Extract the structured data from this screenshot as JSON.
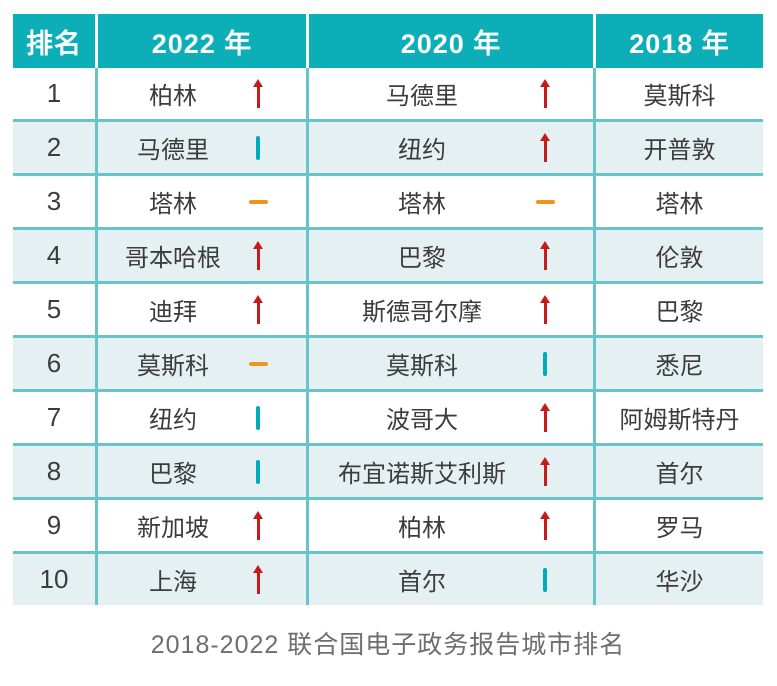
{
  "chart_data": {
    "type": "table",
    "title": "2018-2022 联合国电子政务报告城市排名",
    "columns": [
      "排名",
      "2022 年",
      "2020 年",
      "2018 年"
    ],
    "rows": [
      {
        "rank": "1",
        "y2022": {
          "city": "柏林",
          "trend": "up"
        },
        "y2020": {
          "city": "马德里",
          "trend": "up"
        },
        "y2018": {
          "city": "莫斯科"
        }
      },
      {
        "rank": "2",
        "y2022": {
          "city": "马德里",
          "trend": "down"
        },
        "y2020": {
          "city": "纽约",
          "trend": "up"
        },
        "y2018": {
          "city": "开普敦"
        }
      },
      {
        "rank": "3",
        "y2022": {
          "city": "塔林",
          "trend": "same"
        },
        "y2020": {
          "city": "塔林",
          "trend": "same"
        },
        "y2018": {
          "city": "塔林"
        }
      },
      {
        "rank": "4",
        "y2022": {
          "city": "哥本哈根",
          "trend": "up"
        },
        "y2020": {
          "city": "巴黎",
          "trend": "up"
        },
        "y2018": {
          "city": "伦敦"
        }
      },
      {
        "rank": "5",
        "y2022": {
          "city": "迪拜",
          "trend": "up"
        },
        "y2020": {
          "city": "斯德哥尔摩",
          "trend": "up"
        },
        "y2018": {
          "city": "巴黎"
        }
      },
      {
        "rank": "6",
        "y2022": {
          "city": "莫斯科",
          "trend": "same"
        },
        "y2020": {
          "city": "莫斯科",
          "trend": "down"
        },
        "y2018": {
          "city": "悉尼"
        }
      },
      {
        "rank": "7",
        "y2022": {
          "city": "纽约",
          "trend": "down"
        },
        "y2020": {
          "city": "波哥大",
          "trend": "up"
        },
        "y2018": {
          "city": "阿姆斯特丹"
        }
      },
      {
        "rank": "8",
        "y2022": {
          "city": "巴黎",
          "trend": "down"
        },
        "y2020": {
          "city": "布宜诺斯艾利斯",
          "trend": "up"
        },
        "y2018": {
          "city": "首尔"
        }
      },
      {
        "rank": "9",
        "y2022": {
          "city": "新加坡",
          "trend": "up"
        },
        "y2020": {
          "city": "柏林",
          "trend": "up"
        },
        "y2018": {
          "city": "罗马"
        }
      },
      {
        "rank": "10",
        "y2022": {
          "city": "上海",
          "trend": "up"
        },
        "y2020": {
          "city": "首尔",
          "trend": "down"
        },
        "y2018": {
          "city": "华沙"
        }
      }
    ]
  },
  "icons": {
    "up": "up-arrow-icon",
    "down": "down-bar-icon",
    "same": "no-change-dash-icon"
  },
  "colors": {
    "header_bg": "#0cafb8",
    "stripe_bg": "#e4f0f2",
    "border": "#68c4cb",
    "trend_up": "#c41c1c",
    "trend_down": "#00acba",
    "trend_same": "#f0941d",
    "text": "#3c3c3c",
    "header_text": "#ffffff",
    "caption_text": "#6e6e6e"
  }
}
